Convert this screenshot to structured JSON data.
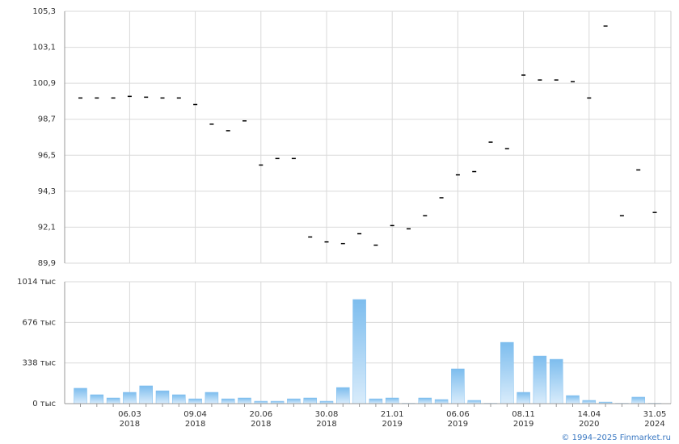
{
  "chart_data": [
    {
      "type": "tick",
      "values": [
        100.0,
        100.0,
        100.0,
        100.1,
        100.05,
        100.0,
        100.0,
        99.6,
        98.4,
        98.0,
        98.6,
        95.9,
        96.3,
        96.3,
        91.5,
        91.2,
        91.1,
        91.7,
        91.0,
        92.2,
        92.0,
        92.8,
        93.9,
        95.3,
        95.5,
        97.3,
        96.9,
        101.4,
        101.1,
        101.1,
        101.0,
        100.0,
        104.4,
        92.8,
        95.6,
        93.0
      ],
      "color": "#000000",
      "ylim": [
        89.9,
        105.3
      ],
      "yticks": [
        {
          "value": 89.9,
          "label": "89,9"
        },
        {
          "value": 92.1,
          "label": "92,1"
        },
        {
          "value": 94.3,
          "label": "94,3"
        },
        {
          "value": 96.5,
          "label": "96,5"
        },
        {
          "value": 98.7,
          "label": "98,7"
        },
        {
          "value": 100.9,
          "label": "100,9"
        },
        {
          "value": 103.1,
          "label": "103,1"
        },
        {
          "value": 105.3,
          "label": "105,3"
        }
      ],
      "grid": true
    },
    {
      "type": "bar",
      "categories": [
        null,
        null,
        null,
        "06.03\n2018",
        null,
        null,
        null,
        "09.04\n2018",
        null,
        null,
        null,
        "20.06\n2018",
        null,
        null,
        null,
        "30.08\n2018",
        null,
        null,
        null,
        "21.01\n2019",
        null,
        null,
        null,
        "06.06\n2019",
        null,
        null,
        null,
        "08.11\n2019",
        null,
        null,
        null,
        "14.04\n2020",
        null,
        null,
        null,
        "31.05\n2024"
      ],
      "values": [
        128,
        74,
        47,
        94,
        148,
        107,
        74,
        40,
        94,
        40,
        47,
        20,
        20,
        40,
        47,
        20,
        134,
        866,
        40,
        47,
        3,
        47,
        34,
        289,
        27,
        3,
        510,
        94,
        396,
        369,
        67,
        27,
        13,
        3,
        54,
        3
      ],
      "color": "#7dbdee",
      "ylim": [
        0,
        1014
      ],
      "yticks": [
        {
          "value": 0,
          "label": "0 тыс"
        },
        {
          "value": 338,
          "label": "338 тыс"
        },
        {
          "value": 676,
          "label": "676 тыс"
        },
        {
          "value": 1014,
          "label": "1014 тыс"
        }
      ],
      "grid": true
    }
  ],
  "footer": "© 1994–2025 Finmarket.ru"
}
